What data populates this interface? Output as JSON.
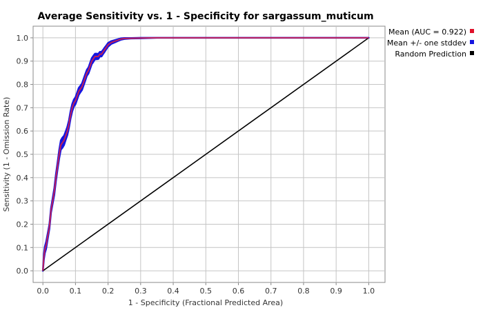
{
  "chart_data": {
    "type": "line",
    "title": "Average Sensitivity vs. 1 - Specificity for sargassum_muticum",
    "xlabel": "1 - Specificity (Fractional Predicted Area)",
    "ylabel": "Sensitivity (1 - Omission Rate)",
    "xlim": [
      -0.03,
      1.05
    ],
    "ylim": [
      -0.05,
      1.05
    ],
    "xticks": [
      "0.0",
      "0.1",
      "0.2",
      "0.3",
      "0.4",
      "0.5",
      "0.6",
      "0.7",
      "0.8",
      "0.9",
      "1.0"
    ],
    "yticks": [
      "0.0",
      "0.1",
      "0.2",
      "0.3",
      "0.4",
      "0.5",
      "0.6",
      "0.7",
      "0.8",
      "0.9",
      "1.0"
    ],
    "grid": true,
    "legend_position": "right",
    "legend": [
      {
        "label": "Mean (AUC = 0.922)",
        "color": "#e0102a"
      },
      {
        "label": "Mean +/- one stddev",
        "color": "#1515e0"
      },
      {
        "label": "Random Prediction",
        "color": "#000000"
      }
    ],
    "series": [
      {
        "name": "Mean (AUC = 0.922)",
        "color": "#c0205a",
        "x": [
          0.0,
          0.003,
          0.006,
          0.01,
          0.015,
          0.02,
          0.025,
          0.03,
          0.035,
          0.04,
          0.045,
          0.05,
          0.055,
          0.06,
          0.065,
          0.07,
          0.075,
          0.08,
          0.085,
          0.09,
          0.095,
          0.1,
          0.105,
          0.11,
          0.115,
          0.12,
          0.125,
          0.13,
          0.135,
          0.14,
          0.145,
          0.15,
          0.155,
          0.16,
          0.165,
          0.17,
          0.175,
          0.18,
          0.185,
          0.19,
          0.195,
          0.2,
          0.21,
          0.22,
          0.23,
          0.24,
          0.25,
          0.27,
          0.3,
          0.35,
          0.4,
          0.5,
          0.6,
          0.7,
          0.8,
          0.9,
          1.0
        ],
        "y": [
          0.0,
          0.06,
          0.09,
          0.11,
          0.15,
          0.19,
          0.26,
          0.3,
          0.34,
          0.4,
          0.45,
          0.5,
          0.54,
          0.55,
          0.56,
          0.58,
          0.6,
          0.63,
          0.67,
          0.7,
          0.72,
          0.73,
          0.75,
          0.77,
          0.78,
          0.79,
          0.81,
          0.83,
          0.85,
          0.86,
          0.88,
          0.9,
          0.91,
          0.92,
          0.92,
          0.92,
          0.93,
          0.93,
          0.94,
          0.95,
          0.96,
          0.97,
          0.98,
          0.985,
          0.99,
          0.995,
          0.997,
          0.998,
          0.999,
          1.0,
          1.0,
          1.0,
          1.0,
          1.0,
          1.0,
          1.0,
          1.0
        ],
        "stddev": [
          0.0,
          0.012,
          0.014,
          0.015,
          0.012,
          0.01,
          0.01,
          0.012,
          0.014,
          0.015,
          0.015,
          0.018,
          0.02,
          0.022,
          0.02,
          0.018,
          0.018,
          0.016,
          0.016,
          0.016,
          0.015,
          0.015,
          0.015,
          0.015,
          0.014,
          0.014,
          0.014,
          0.014,
          0.013,
          0.013,
          0.013,
          0.013,
          0.013,
          0.012,
          0.012,
          0.011,
          0.01,
          0.01,
          0.009,
          0.009,
          0.008,
          0.008,
          0.006,
          0.005,
          0.004,
          0.003,
          0.002,
          0.001,
          0.001,
          0.0,
          0.0,
          0.0,
          0.0,
          0.0,
          0.0,
          0.0,
          0.0
        ]
      },
      {
        "name": "Random Prediction",
        "color": "#000000",
        "x": [
          0.0,
          1.0
        ],
        "y": [
          0.0,
          1.0
        ]
      }
    ]
  }
}
